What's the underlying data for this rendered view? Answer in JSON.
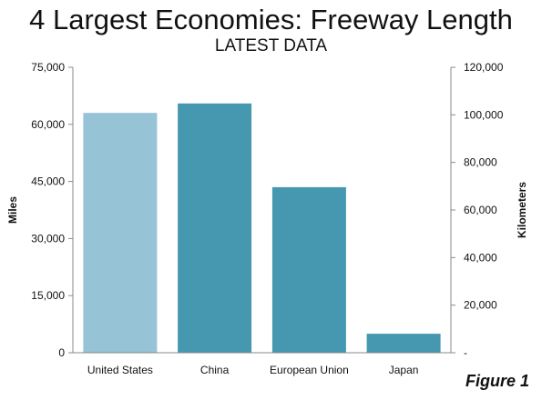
{
  "chart_data": {
    "type": "bar",
    "title": "4 Largest Economies: Freeway Length",
    "subtitle": "LATEST DATA",
    "categories": [
      "United States",
      "China",
      "European Union",
      "Japan"
    ],
    "values": [
      63000,
      65500,
      43500,
      5000
    ],
    "bar_colors": [
      "#96c3d5",
      "#4698b0",
      "#4698b0",
      "#4698b0"
    ],
    "ylabel": "Miles",
    "ylim": [
      0,
      75000
    ],
    "yticks": [
      "0",
      "15,000",
      "30,000",
      "45,000",
      "60,000",
      "75,000"
    ],
    "ylabel_right": "Kilometers",
    "ylim_right": [
      0,
      120000
    ],
    "yticks_right": [
      "-",
      "20,000",
      "40,000",
      "60,000",
      "80,000",
      "100,000",
      "120,000"
    ],
    "grid": false,
    "legend": "none"
  },
  "figure_label": "Figure 1"
}
